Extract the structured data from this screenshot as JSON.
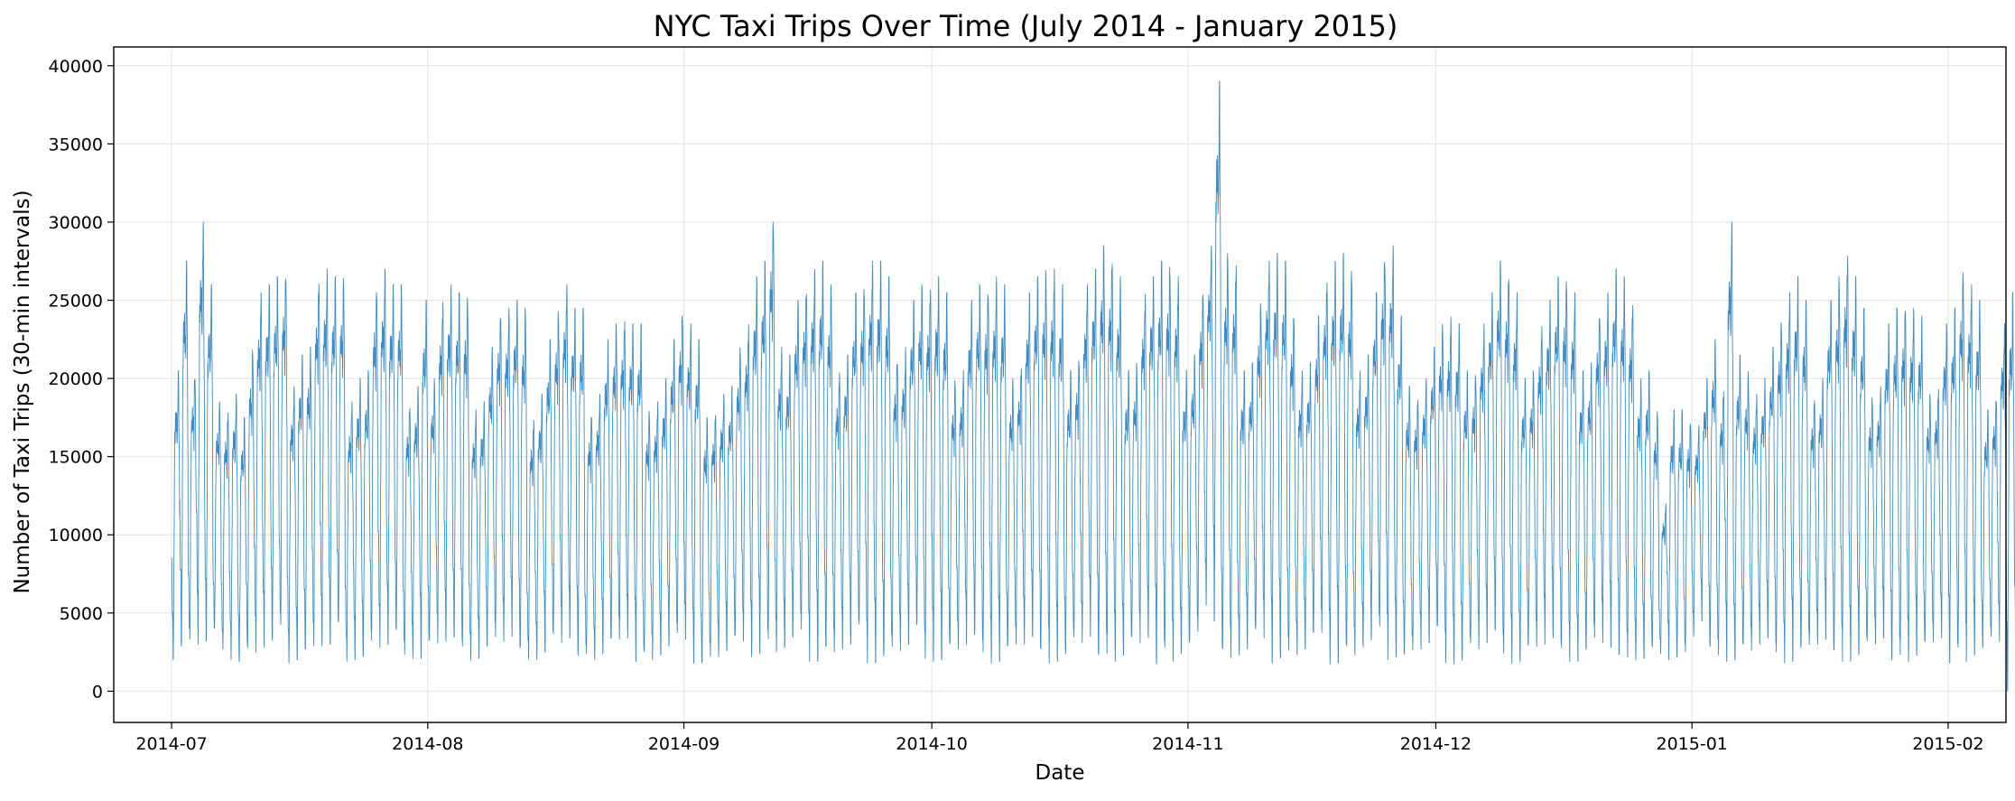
{
  "chart_data": {
    "type": "line",
    "title": "NYC Taxi Trips Over Time (July 2014 - January 2015)",
    "xlabel": "Date",
    "ylabel": "Number of Taxi Trips (30-min intervals)",
    "ylim": [
      -2000,
      41200
    ],
    "xlim": [
      "2014-06-24",
      "2015-02-08"
    ],
    "x_ticks": [
      "2014-07",
      "2014-08",
      "2014-09",
      "2014-10",
      "2014-11",
      "2014-12",
      "2015-01",
      "2015-02"
    ],
    "y_ticks": [
      0,
      5000,
      10000,
      15000,
      20000,
      25000,
      30000,
      35000,
      40000
    ],
    "grid": true,
    "legend": "none",
    "series": [
      {
        "color": "#1f77b4",
        "x_start": "2014-07-01",
        "x_end": "2015-01-31",
        "interval": "30 min",
        "daily_peaks": [
          20500,
          27500,
          20500,
          30000,
          26000,
          18500,
          18000,
          19000,
          17500,
          22000,
          25500,
          26000,
          26500,
          27000,
          19500,
          21500,
          22000,
          26500,
          27000,
          26500,
          26500,
          18500,
          20000,
          20500,
          26000,
          27000,
          26000,
          26000,
          18500,
          19500,
          25000,
          20000,
          25000,
          26000,
          25500,
          25500,
          18000,
          18500,
          22000,
          24500,
          24500,
          25000,
          24500,
          17500,
          19000,
          22500,
          24500,
          26000,
          24500,
          24500,
          18000,
          19000,
          22500,
          23500,
          24000,
          23500,
          23500,
          18000,
          18500,
          20000,
          22500,
          24500,
          23500,
          22500,
          17500,
          18000,
          19000,
          19500,
          22000,
          23500,
          26500,
          27500,
          30500,
          22000,
          21500,
          25000,
          26000,
          27000,
          27500,
          26000,
          20500,
          21500,
          25500,
          26000,
          27500,
          27500,
          26500,
          21500,
          22000,
          25000,
          26000,
          26000,
          26500,
          25500,
          20000,
          20500,
          25000,
          26000,
          26000,
          26500,
          26000,
          20000,
          21000,
          25500,
          26500,
          27000,
          27000,
          26000,
          20500,
          21500,
          26000,
          27000,
          28500,
          28000,
          26500,
          20500,
          21000,
          25500,
          26500,
          27500,
          27500,
          26500,
          20500,
          21500,
          26000,
          28500,
          39000,
          28000,
          27500,
          20500,
          21000,
          25000,
          27500,
          28000,
          27500,
          24500,
          20500,
          21000,
          24000,
          26500,
          27500,
          28000,
          27000,
          20500,
          21500,
          25500,
          28000,
          28500,
          24000,
          19500,
          19000,
          20000,
          22000,
          23500,
          24000,
          23500,
          20500,
          20500,
          23500,
          25500,
          27500,
          27000,
          25500,
          20000,
          20500,
          23500,
          25000,
          26500,
          26500,
          25500,
          20500,
          21000,
          24500,
          25500,
          27000,
          26500,
          25000,
          20000,
          20500,
          18000,
          12000,
          18000,
          18000,
          17500,
          17000,
          20000,
          22500,
          19500,
          30000,
          21500,
          20500,
          19000,
          20000,
          22000,
          24000,
          25500,
          26500,
          25000,
          19000,
          20000,
          25000,
          26500,
          28000,
          26500,
          24500,
          19000,
          19500,
          23500,
          24500,
          25000,
          24500,
          24000,
          19000,
          19500,
          23500,
          24500,
          27000,
          26000,
          25000,
          18000,
          19000,
          23500,
          25500,
          26500,
          26500,
          25000,
          19500,
          18500,
          12500,
          19500,
          23000,
          28000,
          27500
        ],
        "daily_troughs": [
          2000,
          2500,
          2800,
          3000,
          3200,
          3500,
          2500,
          2000,
          1900,
          2000,
          2500,
          2800,
          3000,
          3500,
          1800,
          2000,
          2100,
          2500,
          2900,
          3000,
          3500,
          1900,
          2000,
          2100,
          2400,
          2800,
          3000,
          3400,
          2000,
          2100,
          2100,
          2600,
          3000,
          3200,
          3400,
          2000,
          2000,
          2100,
          2500,
          2900,
          3200,
          3500,
          2000,
          1900,
          2000,
          2500,
          2800,
          3100,
          3400,
          2000,
          1900,
          2000,
          2400,
          2700,
          3000,
          3400,
          1900,
          1900,
          2000,
          2300,
          2700,
          3000,
          3300,
          1800,
          1400,
          1900,
          2200,
          2600,
          2800,
          3200,
          2200,
          2300,
          2300,
          2500,
          2800,
          3000,
          3400,
          1900,
          1900,
          2000,
          2400,
          2700,
          3000,
          3400,
          1800,
          1800,
          1900,
          2300,
          2600,
          3000,
          3500,
          1800,
          1900,
          2000,
          2300,
          2700,
          3000,
          3400,
          1700,
          1800,
          1900,
          2400,
          2700,
          3000,
          3500,
          1700,
          1800,
          1900,
          2300,
          2800,
          3100,
          3500,
          1700,
          1800,
          1900,
          2300,
          2800,
          3000,
          3400,
          1700,
          1800,
          1900,
          2400,
          2800,
          3200,
          5500,
          4500,
          1800,
          1900,
          2300,
          2700,
          3100,
          3400,
          1800,
          1800,
          1900,
          2300,
          2700,
          3100,
          3400,
          1700,
          1800,
          1900,
          2300,
          2800,
          3100,
          3300,
          2000,
          2200,
          1900,
          2300,
          2700,
          3100,
          3400,
          1800,
          1700,
          1900,
          2400,
          2700,
          3100,
          3400,
          1800,
          1800,
          1900,
          2300,
          2700,
          3000,
          3400,
          1800,
          1900,
          1900,
          2400,
          2800,
          3100,
          2800,
          1500,
          1900,
          2000,
          2100,
          2200,
          2400,
          2000,
          2000,
          2000,
          3500,
          4500,
          2300,
          2000,
          1900,
          2000,
          2300,
          2600,
          3000,
          3300,
          1700,
          1800,
          1900,
          2300,
          2600,
          3000,
          3300,
          1700,
          1800,
          1900,
          2300,
          2600,
          3000,
          3400,
          1600,
          1700,
          1900,
          2300,
          2600,
          3000,
          3400,
          1800,
          1800,
          1900,
          2300,
          2600,
          3000,
          3200,
          0,
          1200,
          2000,
          2400,
          3000,
          3300,
          3200
        ]
      }
    ]
  }
}
